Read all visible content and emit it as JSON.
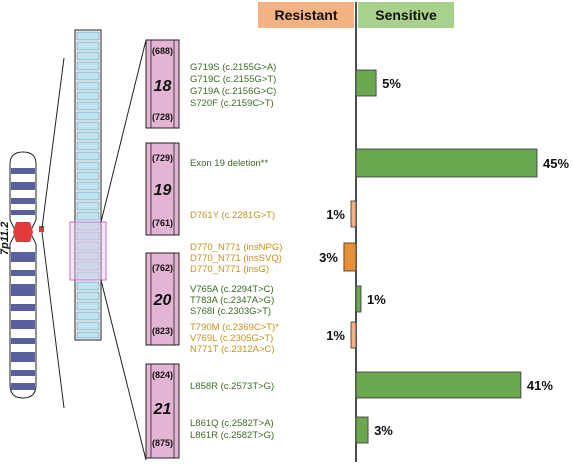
{
  "header": {
    "resistant_label": "Resistant",
    "sensitive_label": "Sensitive",
    "resistant_color": "#f4b183",
    "sensitive_color": "#a9d18e"
  },
  "chromosome": {
    "band_label": "7p11.2"
  },
  "colors": {
    "sensitive_text": "#3a6b22",
    "resistant_text": "#c8901a",
    "sensitive_bar": "#6aa84f",
    "resistant_bar_small": "#f4b183",
    "resistant_bar_medium": "#e69138",
    "exon_fill": "#e4b4d4",
    "chrom_band": "#5a5f9e",
    "centromere": "#e23a3a",
    "zoom_stripe": "#bfe3f1"
  },
  "exons": [
    {
      "number": "18",
      "start": "(688)",
      "end": "(728)"
    },
    {
      "number": "19",
      "start": "(729)",
      "end": "(761)"
    },
    {
      "number": "20",
      "start": "(762)",
      "end": "(823)"
    },
    {
      "number": "21",
      "start": "(824)",
      "end": "(875)"
    }
  ],
  "mutation_groups": [
    {
      "class": "sensitive",
      "lines": [
        "G719S (c.2155G>A)",
        "G719C (c.2155G>T)",
        "G719A (c.2156G>C)",
        "S720F (c.2159C>T)"
      ]
    },
    {
      "class": "sensitive",
      "lines": [
        "Exon 19 deletion**"
      ]
    },
    {
      "class": "resistant",
      "lines": [
        "D761Y (c.2281G>T)"
      ]
    },
    {
      "class": "resistant",
      "lines": [
        "D770_N771 (insNPG)",
        "D770_N771 (insSVQ)",
        "D770_N771 (insG)"
      ]
    },
    {
      "class": "sensitive",
      "lines": [
        "V765A (c.2294T>C)",
        "T783A (c.2347A>G)",
        "S768I (c.2303G>T)"
      ]
    },
    {
      "class": "resistant",
      "lines": [
        "T790M (c.2369C>T)*",
        "V769L (c.2305G>T)",
        "N771T (c.2312A>C)"
      ]
    },
    {
      "class": "sensitive",
      "lines": [
        "L858R (c.2573T>G)"
      ]
    },
    {
      "class": "sensitive",
      "lines": [
        "L861Q (c.2582T>A)",
        "L861R (c.2582T>G)"
      ]
    }
  ],
  "chart_data": {
    "type": "bar",
    "orientation": "horizontal",
    "categories": [
      "G719X / S720F",
      "Exon 19 deletion",
      "D761Y",
      "D770_N771 insertions",
      "V765A / T783A / S768I",
      "T790M / V769L / N771T",
      "L858R",
      "L861Q / L861R"
    ],
    "series": [
      {
        "name": "Sensitive",
        "values": [
          5,
          45,
          null,
          null,
          1,
          null,
          41,
          3
        ]
      },
      {
        "name": "Resistant",
        "values": [
          null,
          null,
          1,
          3,
          null,
          1,
          null,
          null
        ]
      }
    ],
    "value_labels": [
      "5%",
      "45%",
      "1%",
      "3%",
      "1%",
      "1%",
      "41%",
      "3%"
    ],
    "xlim": [
      0,
      45
    ],
    "legend": "top"
  }
}
